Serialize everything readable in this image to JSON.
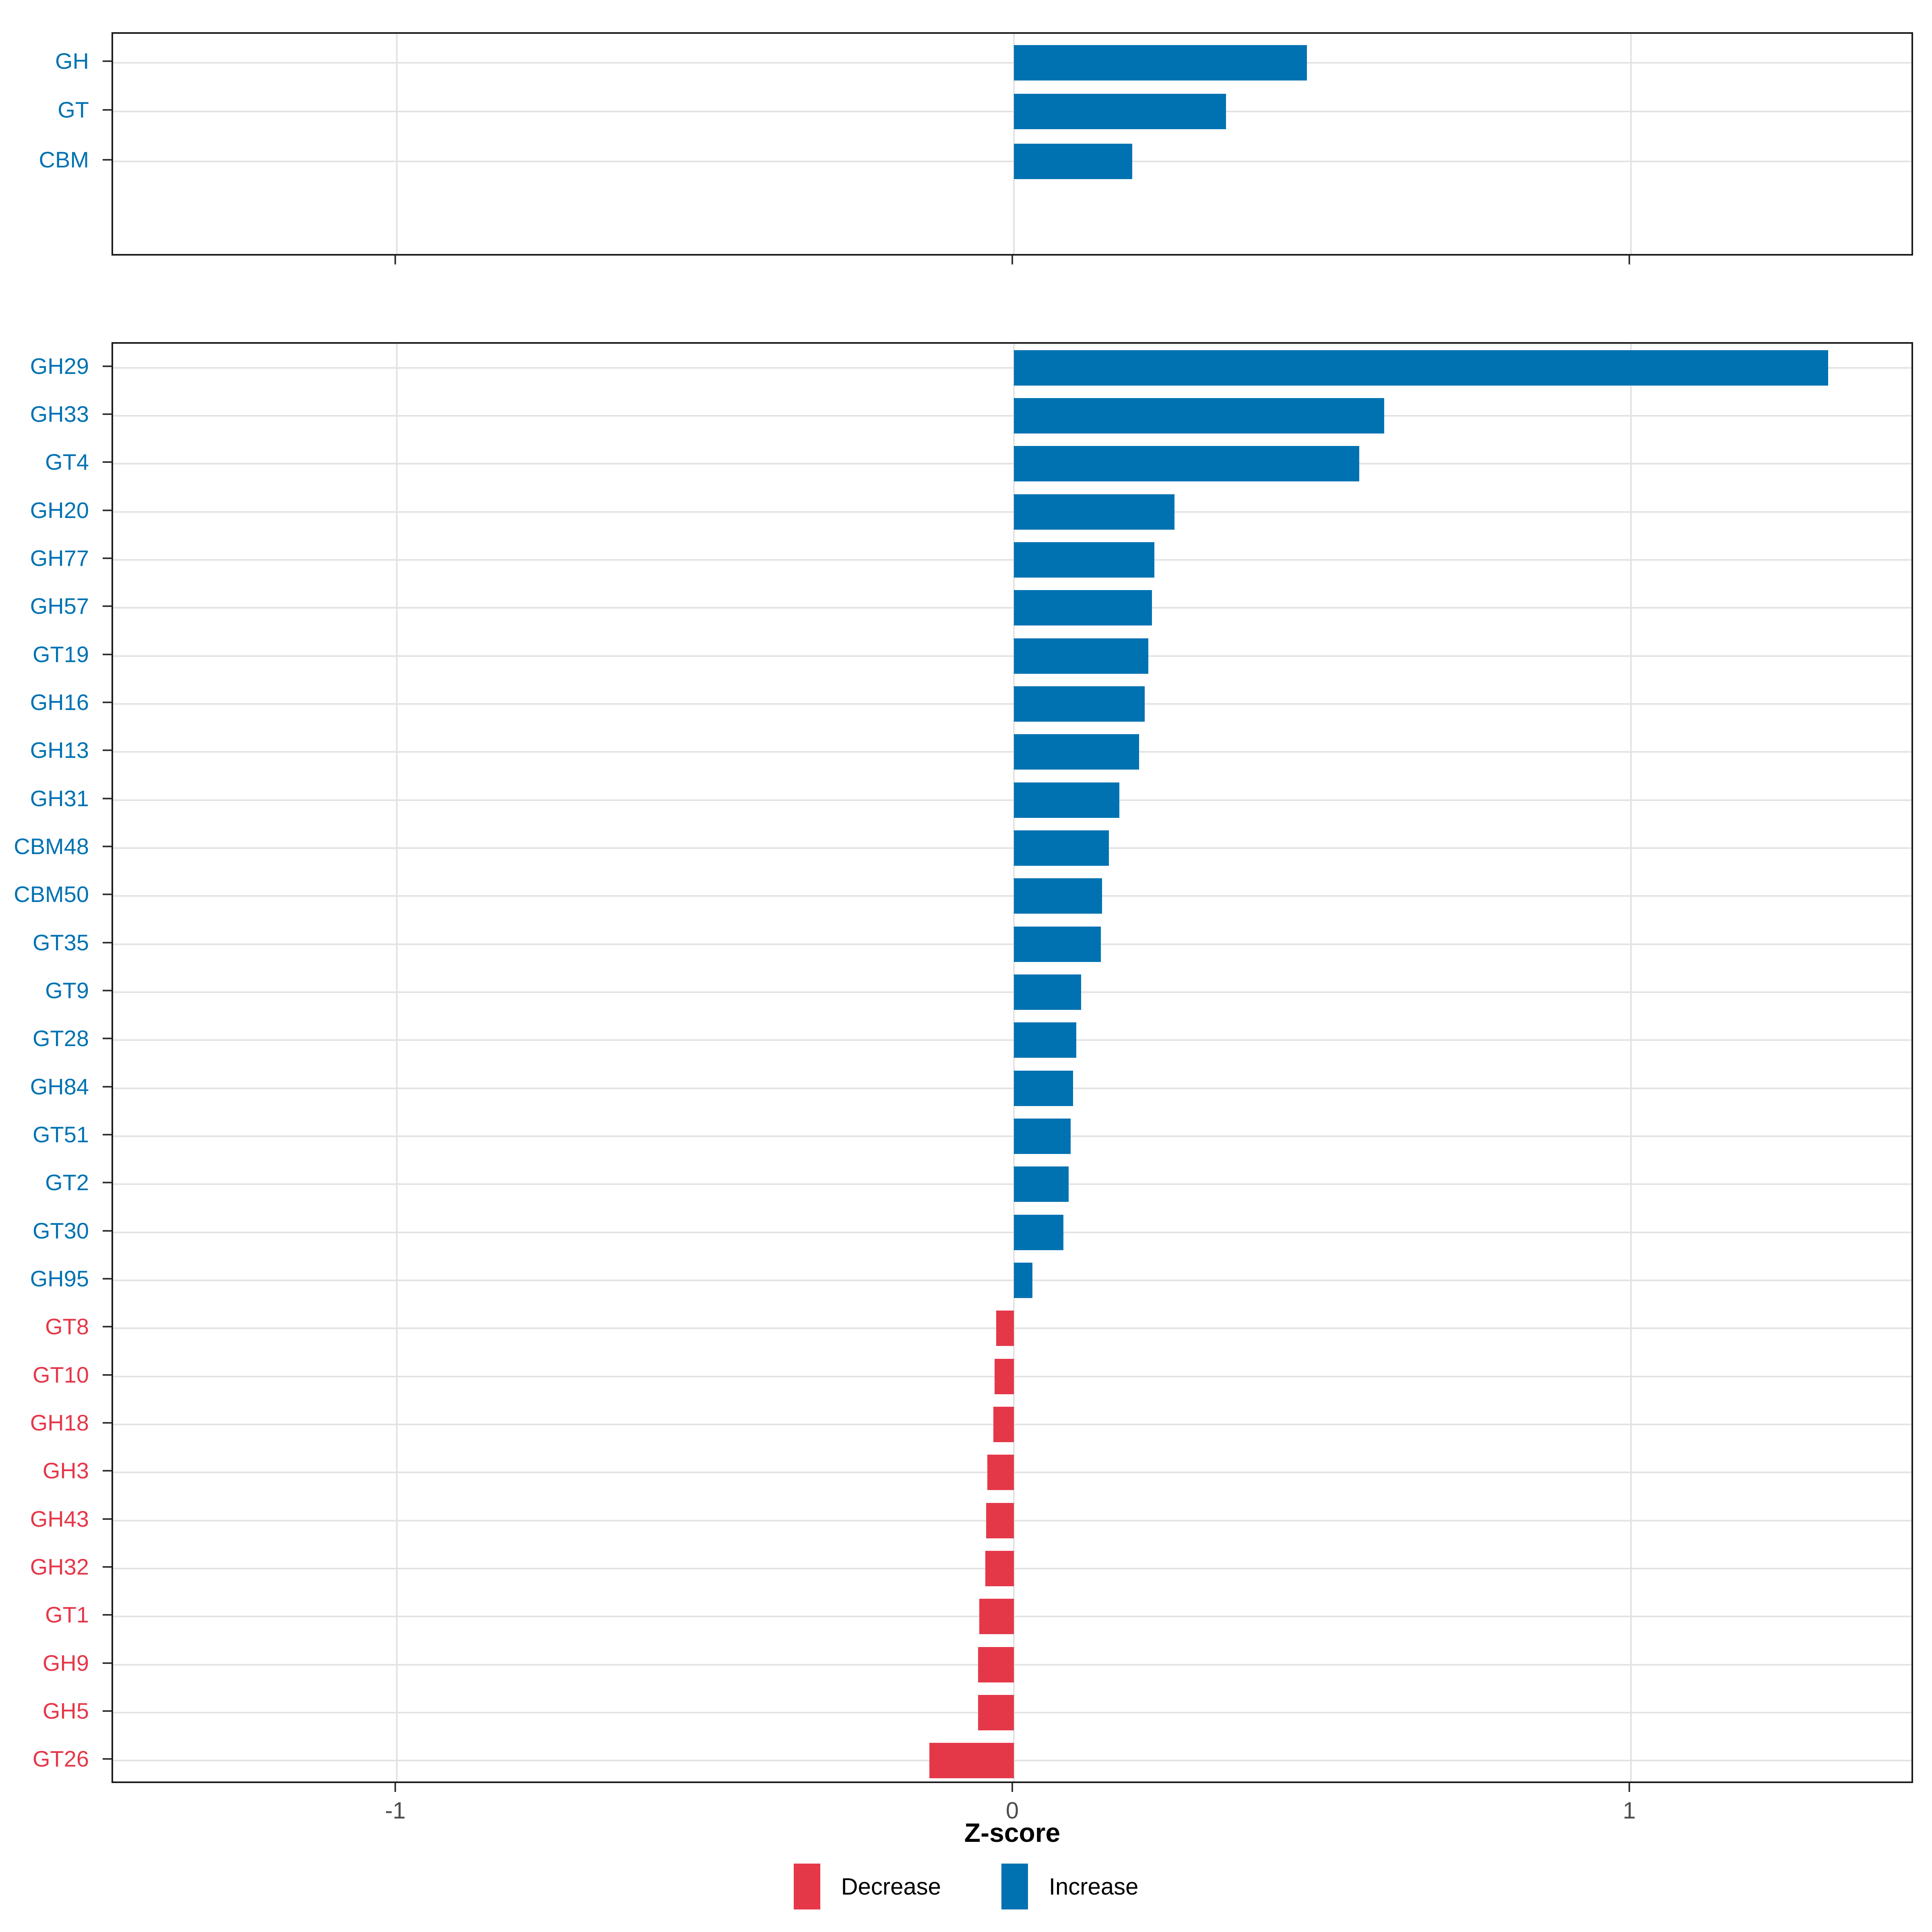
{
  "chart_data": {
    "type": "bar",
    "orientation": "horizontal",
    "xlabel": "Z-score",
    "x_tick_values": [
      -1,
      0,
      1
    ],
    "x_tick_labels": [
      "-1",
      "0",
      "1"
    ],
    "xlim": [
      -1.46,
      1.46
    ],
    "grid": true,
    "legend_position": "bottom",
    "colors": {
      "increase": "#0072B2",
      "decrease": "#E43849",
      "tick_text": "#4d4d4d",
      "gridline": "#e3e3e3",
      "panel_border": "#1a1a1a"
    },
    "legend": [
      {
        "label": "Decrease",
        "key": "decrease"
      },
      {
        "label": "Increase",
        "key": "increase"
      }
    ],
    "panels": [
      {
        "name": "enzyme-classes",
        "categories": [
          "GH",
          "GT",
          "CBM"
        ],
        "values": [
          0.475,
          0.344,
          0.192
        ],
        "row_fracs": [
          0.13,
          0.348,
          0.571
        ]
      },
      {
        "name": "enzyme-families",
        "categories": [
          "GH29",
          "GH33",
          "GT4",
          "GH20",
          "GH77",
          "GH57",
          "GT19",
          "GH16",
          "GH13",
          "GH31",
          "CBM48",
          "CBM50",
          "GT35",
          "GT9",
          "GT28",
          "GH84",
          "GT51",
          "GT2",
          "GT30",
          "GH95",
          "GT8",
          "GT10",
          "GH18",
          "GH3",
          "GH43",
          "GH32",
          "GT1",
          "GH9",
          "GH5",
          "GT26"
        ],
        "values": [
          1.32,
          0.6,
          0.56,
          0.26,
          0.228,
          0.224,
          0.218,
          0.212,
          0.203,
          0.171,
          0.154,
          0.143,
          0.141,
          0.109,
          0.101,
          0.096,
          0.092,
          0.089,
          0.08,
          0.03,
          -0.029,
          -0.031,
          -0.033,
          -0.043,
          -0.045,
          -0.046,
          -0.056,
          -0.058,
          -0.058,
          -0.137
        ]
      }
    ]
  }
}
